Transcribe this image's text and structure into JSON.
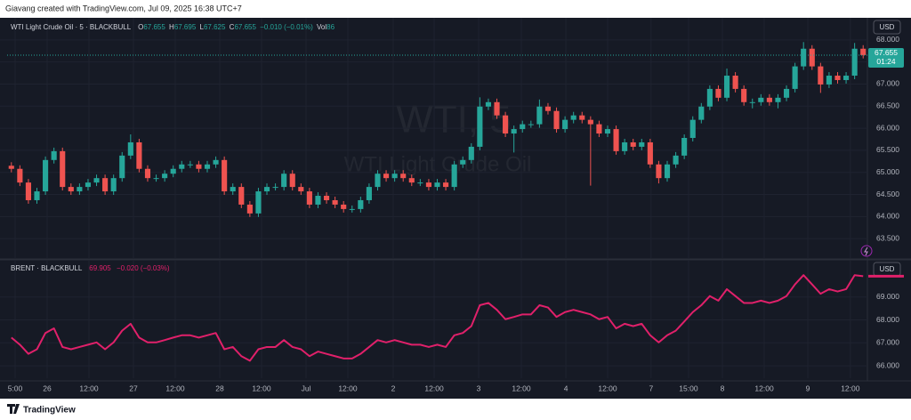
{
  "header": "Giavang created with TradingView.com, Jul 09, 2025 16:38 UTC+7",
  "footer": "TradingView",
  "chart_data": [
    {
      "type": "candlestick",
      "title": "WTI Light Crude Oil · 5 · BLACKBULL",
      "watermark": [
        "WTI, 5",
        "WTI Light Crude Oil"
      ],
      "legend": [
        {
          "label": "O",
          "value": 67.655
        },
        {
          "label": "H",
          "value": 67.695
        },
        {
          "label": "L",
          "value": 67.625
        },
        {
          "label": "C",
          "value": 67.655
        }
      ],
      "change": "−0.010 (−0.01%)",
      "volume": {
        "label": "Vol",
        "value": 86
      },
      "currency": "USD",
      "last_price": 67.655,
      "countdown": "01:24",
      "up_color": "#26a69a",
      "down_color": "#ef5350",
      "open": [
        65.15,
        65.08,
        64.77,
        64.37,
        64.57,
        65.28,
        65.48,
        64.67,
        64.57,
        64.67,
        64.77,
        64.87,
        64.57,
        64.87,
        65.38,
        65.68,
        65.08,
        64.87,
        64.87,
        64.97,
        65.08,
        65.18,
        65.18,
        65.08,
        65.18,
        65.28,
        64.57,
        64.67,
        64.27,
        64.07,
        64.57,
        64.67,
        64.67,
        64.97,
        64.67,
        64.57,
        64.27,
        64.47,
        64.37,
        64.27,
        64.17,
        64.17,
        64.37,
        64.67,
        64.97,
        64.87,
        64.97,
        64.87,
        64.77,
        64.77,
        64.67,
        64.77,
        64.67,
        65.18,
        65.28,
        65.58,
        66.49,
        66.59,
        66.29,
        65.88,
        65.98,
        66.09,
        66.09,
        66.49,
        66.39,
        65.98,
        66.19,
        66.29,
        66.19,
        66.09,
        65.88,
        65.98,
        65.48,
        65.68,
        65.58,
        65.68,
        65.18,
        64.87,
        65.18,
        65.38,
        65.78,
        66.19,
        66.49,
        66.89,
        66.69,
        67.19,
        66.89,
        66.59,
        66.59,
        66.69,
        66.59,
        66.69,
        66.89,
        67.4,
        67.8,
        67.4,
        66.99,
        67.19,
        67.09,
        67.19,
        67.8
      ],
      "high": [
        65.23,
        65.16,
        64.85,
        64.65,
        65.36,
        65.56,
        65.56,
        64.75,
        64.75,
        64.85,
        64.95,
        64.95,
        64.95,
        65.46,
        65.86,
        65.76,
        65.16,
        64.95,
        65.05,
        65.16,
        65.26,
        65.26,
        65.26,
        65.26,
        65.36,
        65.36,
        64.75,
        64.75,
        64.35,
        64.65,
        64.75,
        64.75,
        65.05,
        65.05,
        64.75,
        64.65,
        64.55,
        64.55,
        64.45,
        64.35,
        64.25,
        64.45,
        64.75,
        65.05,
        65.05,
        65.05,
        65.05,
        64.95,
        64.85,
        64.85,
        64.85,
        64.85,
        65.26,
        65.36,
        65.66,
        66.7,
        66.67,
        66.67,
        66.37,
        66.06,
        66.17,
        66.17,
        66.65,
        66.57,
        66.47,
        66.27,
        66.37,
        66.37,
        66.27,
        66.17,
        66.06,
        66.06,
        65.76,
        65.76,
        65.76,
        65.76,
        65.26,
        65.26,
        65.46,
        65.86,
        66.27,
        66.57,
        66.97,
        66.97,
        67.35,
        67.27,
        66.97,
        66.67,
        66.77,
        66.77,
        66.77,
        66.97,
        67.48,
        67.95,
        67.88,
        67.48,
        67.27,
        67.27,
        67.27,
        67.93,
        67.88
      ],
      "low": [
        65.0,
        64.69,
        64.29,
        64.29,
        64.49,
        65.2,
        64.59,
        64.49,
        64.49,
        64.59,
        64.69,
        64.49,
        64.49,
        64.79,
        65.3,
        65.0,
        64.79,
        64.79,
        64.79,
        64.89,
        65.0,
        65.1,
        65.0,
        65.0,
        65.1,
        64.49,
        64.49,
        64.19,
        63.99,
        63.99,
        64.49,
        64.59,
        64.59,
        64.59,
        64.49,
        64.19,
        64.19,
        64.29,
        64.19,
        64.09,
        64.09,
        64.09,
        64.29,
        64.59,
        64.79,
        64.79,
        64.79,
        64.69,
        64.69,
        64.59,
        64.59,
        64.59,
        64.59,
        65.1,
        65.2,
        65.5,
        66.41,
        66.21,
        65.8,
        65.45,
        65.9,
        66.01,
        66.01,
        66.31,
        65.9,
        65.9,
        66.11,
        66.11,
        64.7,
        65.8,
        65.8,
        65.4,
        65.4,
        65.5,
        65.5,
        65.1,
        64.75,
        64.79,
        65.1,
        65.3,
        65.7,
        66.11,
        66.41,
        66.61,
        66.61,
        66.81,
        66.51,
        66.45,
        66.51,
        66.51,
        66.45,
        66.61,
        66.81,
        67.32,
        67.32,
        66.8,
        66.91,
        67.01,
        67.01,
        67.11,
        67.58
      ],
      "close": [
        65.08,
        64.77,
        64.37,
        64.57,
        65.28,
        65.48,
        64.67,
        64.57,
        64.67,
        64.77,
        64.87,
        64.57,
        64.87,
        65.38,
        65.68,
        65.08,
        64.87,
        64.87,
        64.97,
        65.08,
        65.18,
        65.18,
        65.08,
        65.18,
        65.28,
        64.57,
        64.67,
        64.27,
        64.07,
        64.57,
        64.67,
        64.67,
        64.97,
        64.67,
        64.57,
        64.27,
        64.47,
        64.37,
        64.27,
        64.17,
        64.17,
        64.37,
        64.67,
        64.97,
        64.87,
        64.97,
        64.87,
        64.77,
        64.77,
        64.67,
        64.77,
        64.67,
        65.18,
        65.28,
        65.58,
        66.49,
        66.59,
        66.29,
        65.88,
        65.98,
        66.09,
        66.09,
        66.49,
        66.39,
        65.98,
        66.19,
        66.29,
        66.19,
        66.09,
        65.88,
        65.98,
        65.48,
        65.68,
        65.58,
        65.68,
        65.18,
        64.87,
        65.18,
        65.38,
        65.78,
        66.19,
        66.49,
        66.89,
        66.69,
        67.19,
        66.89,
        66.59,
        66.59,
        66.69,
        66.59,
        66.69,
        66.89,
        67.4,
        67.8,
        67.4,
        66.99,
        67.19,
        67.09,
        67.19,
        67.8,
        67.655
      ],
      "ylim": [
        63.06,
        68.5
      ],
      "yticks": [
        {
          "value": 68,
          "label": "68.000"
        },
        {
          "value": 67.5,
          "label": "67.500"
        },
        {
          "value": 67,
          "label": "67.000"
        },
        {
          "value": 66.5,
          "label": "66.500"
        },
        {
          "value": 66,
          "label": "66.000"
        },
        {
          "value": 65.5,
          "label": "65.500"
        },
        {
          "value": 65,
          "label": "65.000"
        },
        {
          "value": 64.5,
          "label": "64.500"
        },
        {
          "value": 64,
          "label": "64.000"
        },
        {
          "value": 63.5,
          "label": "63.500"
        }
      ],
      "xlim": [
        0,
        101
      ],
      "xticks": [
        {
          "value": 0.94,
          "label": "5:00"
        },
        {
          "value": 4.7,
          "label": "26"
        },
        {
          "value": 9.61,
          "label": "12:00"
        },
        {
          "value": 14.83,
          "label": "27"
        },
        {
          "value": 19.74,
          "label": "12:00"
        },
        {
          "value": 24.96,
          "label": "28"
        },
        {
          "value": 29.87,
          "label": "12:00"
        },
        {
          "value": 35.1,
          "label": "Jul"
        },
        {
          "value": 40,
          "label": "12:00"
        },
        {
          "value": 45.33,
          "label": "2"
        },
        {
          "value": 50.14,
          "label": "12:00"
        },
        {
          "value": 55.36,
          "label": "3"
        },
        {
          "value": 60.37,
          "label": "12:00"
        },
        {
          "value": 65.6,
          "label": "4"
        },
        {
          "value": 70.5,
          "label": "12:00"
        },
        {
          "value": 75.6,
          "label": "7"
        },
        {
          "value": 80,
          "label": "15:00"
        },
        {
          "value": 83.98,
          "label": "8"
        },
        {
          "value": 88.89,
          "label": "12:00"
        },
        {
          "value": 94,
          "label": "9"
        },
        {
          "value": 99,
          "label": "12:00"
        }
      ],
      "grid": true
    },
    {
      "type": "line",
      "title": "BRENT · BLACKBULL",
      "last_value": 69.905,
      "change": "−0.020 (−0.03%)",
      "currency": "USD",
      "series": [
        {
          "color": "#e0206a",
          "values": [
            67.23,
            66.92,
            66.52,
            66.72,
            67.43,
            67.63,
            66.82,
            66.72,
            66.82,
            66.92,
            67.02,
            66.72,
            67.02,
            67.53,
            67.83,
            67.23,
            67.02,
            67.02,
            67.12,
            67.23,
            67.33,
            67.33,
            67.23,
            67.33,
            67.43,
            66.72,
            66.82,
            66.42,
            66.22,
            66.72,
            66.82,
            66.82,
            67.12,
            66.82,
            66.72,
            66.42,
            66.62,
            66.52,
            66.42,
            66.32,
            66.32,
            66.52,
            66.82,
            67.12,
            67.02,
            67.12,
            67.02,
            66.92,
            66.92,
            66.82,
            66.92,
            66.82,
            67.33,
            67.43,
            67.73,
            68.64,
            68.74,
            68.44,
            68.03,
            68.13,
            68.24,
            68.24,
            68.64,
            68.54,
            68.13,
            68.34,
            68.44,
            68.34,
            68.24,
            68.03,
            68.13,
            67.63,
            67.83,
            67.73,
            67.83,
            67.33,
            67.02,
            67.33,
            67.53,
            67.93,
            68.34,
            68.64,
            69.04,
            68.84,
            69.34,
            69.04,
            68.74,
            68.74,
            68.84,
            68.74,
            68.84,
            69.04,
            69.55,
            69.95,
            69.55,
            69.14,
            69.34,
            69.24,
            69.34,
            69.95,
            69.905
          ]
        }
      ],
      "ylim": [
        65.46,
        70.58
      ],
      "yticks": [
        {
          "value": 69,
          "label": "69.000"
        },
        {
          "value": 68,
          "label": "68.000"
        },
        {
          "value": 67,
          "label": "67.000"
        },
        {
          "value": 66,
          "label": "66.000"
        }
      ],
      "grid": true
    }
  ]
}
